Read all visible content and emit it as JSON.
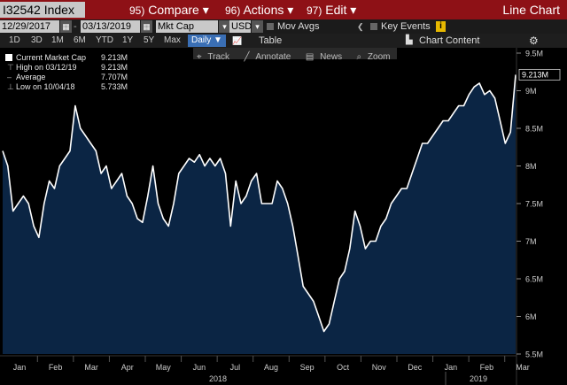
{
  "top_bar": {
    "ticker": "I32542 Index",
    "compare_num": "95)",
    "compare_label": "Compare",
    "actions_num": "96)",
    "actions_label": "Actions",
    "edit_num": "97)",
    "edit_label": "Edit",
    "title": "Line Chart"
  },
  "controls": {
    "start_date": "12/29/2017",
    "end_date": "03/13/2019",
    "field": "Mkt Cap",
    "currency": "USD",
    "mov_avgs": "Mov Avgs",
    "key_events": "Key Events"
  },
  "periods": {
    "items": [
      "1D",
      "3D",
      "1M",
      "6M",
      "YTD",
      "1Y",
      "5Y",
      "Max"
    ],
    "frequency": "Daily",
    "table": "Table",
    "chart_content": "Chart Content"
  },
  "toolbar": {
    "track": "Track",
    "annotate": "Annotate",
    "news": "News",
    "zoom": "Zoom"
  },
  "legend": [
    {
      "label": "Current Market Cap",
      "value": "9.213M"
    },
    {
      "label": "High on 03/12/19",
      "value": "9.213M"
    },
    {
      "label": "Average",
      "value": "7.707M"
    },
    {
      "label": "Low on 10/04/18",
      "value": "5.733M"
    }
  ],
  "colors": {
    "line": "#ffffff",
    "fill": "#0b2544",
    "header": "#8e1116",
    "accent": "#3a6fb5"
  },
  "chart_data": {
    "type": "area",
    "title": "",
    "xlabel": "",
    "ylabel": "",
    "ylim": [
      5.5,
      9.5
    ],
    "y_ticks": [
      "5.5M",
      "6M",
      "6.5M",
      "7M",
      "7.5M",
      "8M",
      "8.5M",
      "9M",
      "9.5M"
    ],
    "x_ticks": [
      "Jan",
      "Feb",
      "Mar",
      "Apr",
      "May",
      "Jun",
      "Jul",
      "Aug",
      "Sep",
      "Oct",
      "Nov",
      "Dec",
      "Jan",
      "Feb",
      "Mar"
    ],
    "year_labels": [
      "2018",
      "2019"
    ],
    "current_label": "9.213M",
    "grid": false,
    "series": [
      {
        "values": [
          8.2,
          8.0,
          7.4,
          7.5,
          7.6,
          7.5,
          7.2,
          7.05,
          7.5,
          7.8,
          7.7,
          8.0,
          8.1,
          8.2,
          8.8,
          8.5,
          8.4,
          8.3,
          8.2,
          7.9,
          8.0,
          7.7,
          7.8,
          7.9,
          7.6,
          7.5,
          7.3,
          7.25,
          7.6,
          8.0,
          7.5,
          7.3,
          7.2,
          7.5,
          7.9,
          8.0,
          8.1,
          8.05,
          8.15,
          8.0,
          8.1,
          8.0,
          8.1,
          7.9,
          7.2,
          7.8,
          7.5,
          7.6,
          7.8,
          7.9,
          7.5,
          7.5,
          7.5,
          7.8,
          7.7,
          7.5,
          7.2,
          6.8,
          6.4,
          6.3,
          6.2,
          6.0,
          5.8,
          5.9,
          6.2,
          6.5,
          6.6,
          6.9,
          7.4,
          7.2,
          6.9,
          7.0,
          7.0,
          7.2,
          7.3,
          7.5,
          7.6,
          7.7,
          7.7,
          7.9,
          8.1,
          8.3,
          8.3,
          8.4,
          8.5,
          8.6,
          8.6,
          8.7,
          8.8,
          8.8,
          8.95,
          9.05,
          9.1,
          8.95,
          9.0,
          8.9,
          8.6,
          8.3,
          8.45,
          9.213
        ]
      }
    ]
  }
}
